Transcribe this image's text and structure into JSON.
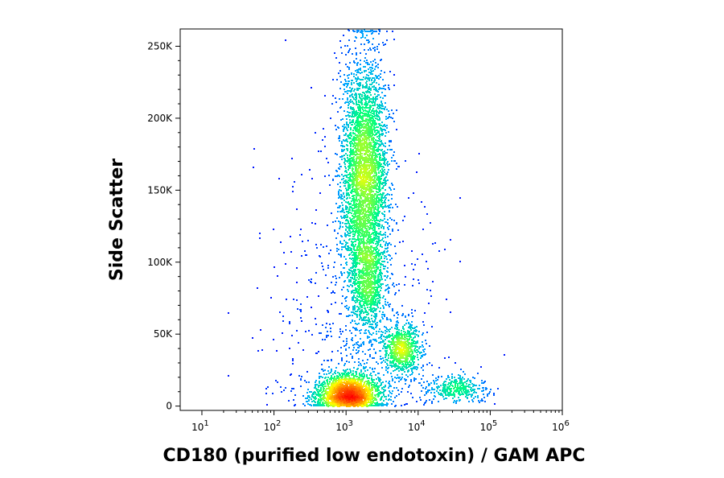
{
  "chart_data": {
    "type": "scatter",
    "subtype": "flow-cytometry density dot plot",
    "title": "",
    "xlabel": "CD180 (purified low endotoxin) / GAM APC",
    "ylabel": "Side Scatter",
    "x_scale": "log",
    "xlim": [
      5,
      1000000
    ],
    "ylim": [
      -3000,
      262000
    ],
    "x_ticks": [
      {
        "value": 10,
        "base": "10",
        "exp": "1"
      },
      {
        "value": 100,
        "base": "10",
        "exp": "2"
      },
      {
        "value": 1000,
        "base": "10",
        "exp": "3"
      },
      {
        "value": 10000,
        "base": "10",
        "exp": "4"
      },
      {
        "value": 100000,
        "base": "10",
        "exp": "5"
      },
      {
        "value": 1000000,
        "base": "10",
        "exp": "6"
      }
    ],
    "y_ticks": [
      {
        "value": 0,
        "label": "0"
      },
      {
        "value": 50000,
        "label": "50K"
      },
      {
        "value": 100000,
        "label": "100K"
      },
      {
        "value": 150000,
        "label": "150K"
      },
      {
        "value": 200000,
        "label": "200K"
      },
      {
        "value": 250000,
        "label": "250K"
      }
    ],
    "grid": false,
    "legend": "none",
    "color_scale": [
      "#0000ff",
      "#00aaff",
      "#00ff80",
      "#ffff00",
      "#ff8000",
      "#ff0000"
    ],
    "populations": [
      {
        "x_median": 1800,
        "x_log_sd": 0.16,
        "y_mean": 160000,
        "y_sd": 42000,
        "weight": 0.44
      },
      {
        "x_median": 1100,
        "x_log_sd": 0.22,
        "y_mean": 8000,
        "y_sd": 7000,
        "weight": 0.26
      },
      {
        "x_median": 6000,
        "x_log_sd": 0.13,
        "y_mean": 40000,
        "y_sd": 9000,
        "weight": 0.09
      },
      {
        "x_median": 2000,
        "x_log_sd": 0.12,
        "y_mean": 85000,
        "y_sd": 18000,
        "weight": 0.09
      },
      {
        "x_median": 35000,
        "x_log_sd": 0.2,
        "y_mean": 12000,
        "y_sd": 4000,
        "weight": 0.04
      },
      {
        "x_median": 1500,
        "x_log_sd": 0.6,
        "y_mean": 50000,
        "y_sd": 60000,
        "weight": 0.08
      }
    ],
    "event_count": 9000
  }
}
